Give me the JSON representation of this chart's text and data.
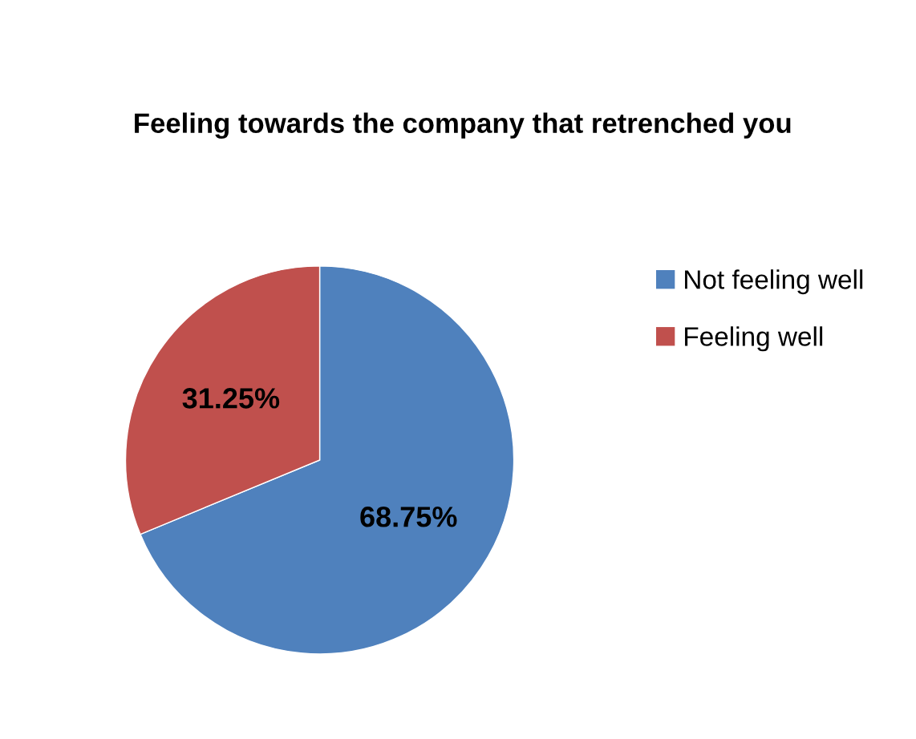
{
  "chart_data": {
    "type": "pie",
    "title": "Feeling towards the company that retrenched you",
    "categories": [
      "Not feeling well",
      "Feeling well"
    ],
    "values": [
      68.75,
      31.25
    ],
    "colors": [
      "#4f81bd",
      "#c0504d"
    ],
    "value_labels": [
      "68.75%",
      "31.25%"
    ],
    "legend": "right"
  }
}
